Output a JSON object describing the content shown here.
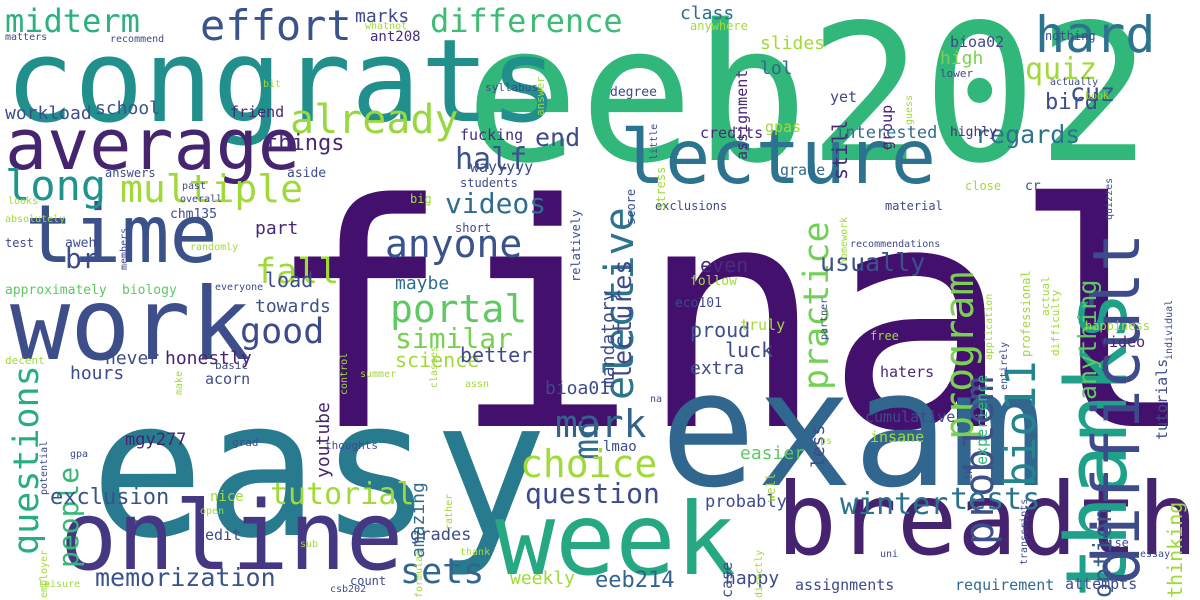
{
  "words": [
    {
      "text": "final"
    },
    {
      "text": "easy"
    },
    {
      "text": "exam"
    },
    {
      "text": "eeb202"
    },
    {
      "text": "congrats"
    },
    {
      "text": "week"
    },
    {
      "text": "breadth"
    },
    {
      "text": "online"
    },
    {
      "text": "work"
    },
    {
      "text": "time"
    },
    {
      "text": "average"
    },
    {
      "text": "lecture"
    },
    {
      "text": "thanks"
    },
    {
      "text": "difficult"
    },
    {
      "text": "hard"
    },
    {
      "text": "effort"
    },
    {
      "text": "midterm"
    },
    {
      "text": "difference"
    },
    {
      "text": "already"
    },
    {
      "text": "multiple"
    },
    {
      "text": "long"
    },
    {
      "text": "anyone"
    },
    {
      "text": "portal"
    },
    {
      "text": "elective"
    },
    {
      "text": "program"
    },
    {
      "text": "problem"
    },
    {
      "text": "bio11"
    },
    {
      "text": "fall"
    },
    {
      "text": "good"
    },
    {
      "text": "mc"
    },
    {
      "text": "choice"
    },
    {
      "text": "mark"
    },
    {
      "text": "questions"
    },
    {
      "text": "memorization"
    },
    {
      "text": "question"
    },
    {
      "text": "sets"
    },
    {
      "text": "tutorial"
    },
    {
      "text": "winter"
    },
    {
      "text": "tests"
    },
    {
      "text": "eeb214"
    },
    {
      "text": "quiz"
    },
    {
      "text": "practice"
    },
    {
      "text": "half"
    },
    {
      "text": "videos"
    },
    {
      "text": "similar"
    },
    {
      "text": "people"
    },
    {
      "text": "br"
    },
    {
      "text": "exclusion"
    },
    {
      "text": "cuz"
    },
    {
      "text": "bird"
    },
    {
      "text": "regards"
    },
    {
      "text": "end"
    },
    {
      "text": "lectures"
    },
    {
      "text": "things"
    },
    {
      "text": "usually"
    },
    {
      "text": "anything"
    },
    {
      "text": "option"
    },
    {
      "text": "thinking"
    },
    {
      "text": "marks"
    },
    {
      "text": "class"
    },
    {
      "text": "slides"
    },
    {
      "text": "lol"
    },
    {
      "text": "still"
    },
    {
      "text": "high"
    },
    {
      "text": "bioa02"
    },
    {
      "text": "ant208"
    },
    {
      "text": "school"
    },
    {
      "text": "workload"
    },
    {
      "text": "friend"
    },
    {
      "text": "fucking"
    },
    {
      "text": "wayyyyy"
    },
    {
      "text": "credits"
    },
    {
      "text": "gpas"
    },
    {
      "text": "assignment"
    },
    {
      "text": "yet"
    },
    {
      "text": "group"
    },
    {
      "text": "interested"
    },
    {
      "text": "highly"
    },
    {
      "text": "grade"
    },
    {
      "text": "science"
    },
    {
      "text": "luck"
    },
    {
      "text": "proud"
    },
    {
      "text": "better"
    },
    {
      "text": "maybe"
    },
    {
      "text": "towards"
    },
    {
      "text": "load"
    },
    {
      "text": "part"
    },
    {
      "text": "even"
    },
    {
      "text": "mandatory"
    },
    {
      "text": "eco101"
    },
    {
      "text": "truly"
    },
    {
      "text": "haters"
    },
    {
      "text": "video"
    },
    {
      "text": "hours"
    },
    {
      "text": "never"
    },
    {
      "text": "honestly"
    },
    {
      "text": "youtube"
    },
    {
      "text": "acorn"
    },
    {
      "text": "mgy277"
    },
    {
      "text": "amazing"
    },
    {
      "text": "bioa01"
    },
    {
      "text": "extra"
    },
    {
      "text": "easier"
    },
    {
      "text": "less"
    },
    {
      "text": "cumulative"
    },
    {
      "text": "insane"
    },
    {
      "text": "experience"
    },
    {
      "text": "tutorials"
    },
    {
      "text": "edit"
    },
    {
      "text": "grades"
    },
    {
      "text": "weekly"
    },
    {
      "text": "happy"
    },
    {
      "text": "probably"
    },
    {
      "text": "assignments"
    },
    {
      "text": "requirement"
    },
    {
      "text": "attempts"
    },
    {
      "text": "case"
    },
    {
      "text": "count"
    },
    {
      "text": "exclusions"
    },
    {
      "text": "material"
    },
    {
      "text": "students"
    },
    {
      "text": "big"
    },
    {
      "text": "short"
    },
    {
      "text": "aside"
    },
    {
      "text": "answers"
    },
    {
      "text": "chm135"
    },
    {
      "text": "aweh"
    },
    {
      "text": "test"
    },
    {
      "text": "approximately"
    },
    {
      "text": "biology"
    },
    {
      "text": "matters"
    },
    {
      "text": "recommend"
    },
    {
      "text": "whatnot"
    },
    {
      "text": "answer"
    },
    {
      "text": "syllabus"
    },
    {
      "text": "degree"
    },
    {
      "text": "stress"
    },
    {
      "text": "score"
    },
    {
      "text": "relatively"
    },
    {
      "text": "lmao"
    },
    {
      "text": "decent"
    },
    {
      "text": "basic"
    },
    {
      "text": "summer"
    },
    {
      "text": "thoughts"
    },
    {
      "text": "grad"
    },
    {
      "text": "nice"
    },
    {
      "text": "open"
    },
    {
      "text": "gpa"
    },
    {
      "text": "potential"
    },
    {
      "text": "employer"
    },
    {
      "text": "leisure"
    },
    {
      "text": "csb202"
    },
    {
      "text": "sub"
    },
    {
      "text": "thank"
    },
    {
      "text": "formulas"
    },
    {
      "text": "directly"
    },
    {
      "text": "uni"
    },
    {
      "text": "wise"
    },
    {
      "text": "essay"
    },
    {
      "text": "transcripts"
    },
    {
      "text": "ps"
    },
    {
      "text": "well"
    },
    {
      "text": "na"
    },
    {
      "text": "assn"
    },
    {
      "text": "rather"
    },
    {
      "text": "ik"
    },
    {
      "text": "entirely"
    },
    {
      "text": "control"
    },
    {
      "text": "make"
    },
    {
      "text": "free"
    },
    {
      "text": "happiness"
    },
    {
      "text": "individual"
    },
    {
      "text": "application"
    },
    {
      "text": "professional"
    },
    {
      "text": "actual"
    },
    {
      "text": "difficulty"
    },
    {
      "text": "partner"
    },
    {
      "text": "homework"
    },
    {
      "text": "recommendations"
    },
    {
      "text": "quizzes"
    },
    {
      "text": "cr"
    },
    {
      "text": "close"
    },
    {
      "text": "classes"
    },
    {
      "text": "follow"
    },
    {
      "text": "everyone"
    },
    {
      "text": "randomly"
    },
    {
      "text": "members"
    },
    {
      "text": "absolutely"
    },
    {
      "text": "looks"
    },
    {
      "text": "past"
    },
    {
      "text": "overall"
    },
    {
      "text": "anywhere"
    },
    {
      "text": "little"
    },
    {
      "text": "guess"
    },
    {
      "text": "lower"
    },
    {
      "text": "nothing"
    },
    {
      "text": "actually"
    },
    {
      "text": "book"
    },
    {
      "text": "bit"
    }
  ]
}
